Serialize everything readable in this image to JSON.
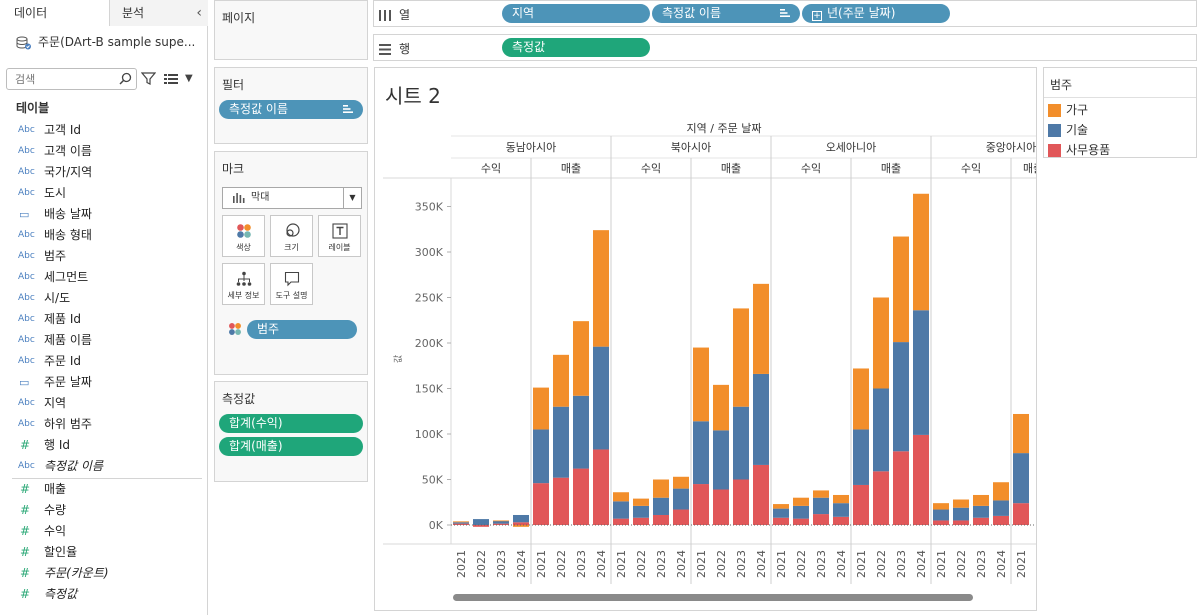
{
  "pane_tabs": {
    "data": "데이터",
    "analysis": "분석"
  },
  "datasource": {
    "name": "주문(DArt-B sample supe..."
  },
  "search": {
    "placeholder": "검색"
  },
  "tables_title": "테이블",
  "fields": [
    {
      "type": "abc",
      "name": "고객 Id",
      "italic": false
    },
    {
      "type": "abc",
      "name": "고객 이름",
      "italic": false
    },
    {
      "type": "abc",
      "name": "국가/지역",
      "italic": false
    },
    {
      "type": "abc",
      "name": "도시",
      "italic": false
    },
    {
      "type": "date",
      "name": "배송 날짜",
      "italic": false
    },
    {
      "type": "abc",
      "name": "배송 형태",
      "italic": false
    },
    {
      "type": "abc",
      "name": "범주",
      "italic": false
    },
    {
      "type": "abc",
      "name": "세그먼트",
      "italic": false
    },
    {
      "type": "abc",
      "name": "시/도",
      "italic": false
    },
    {
      "type": "abc",
      "name": "제품 Id",
      "italic": false
    },
    {
      "type": "abc",
      "name": "제품 이름",
      "italic": false
    },
    {
      "type": "abc",
      "name": "주문 Id",
      "italic": false
    },
    {
      "type": "date",
      "name": "주문 날짜",
      "italic": false
    },
    {
      "type": "abc",
      "name": "지역",
      "italic": false
    },
    {
      "type": "abc",
      "name": "하위 범주",
      "italic": false
    },
    {
      "type": "num",
      "name": "행 Id",
      "italic": false
    },
    {
      "type": "abc",
      "name": "측정값 이름",
      "italic": true
    },
    {
      "type": "num",
      "name": "매출",
      "italic": false
    },
    {
      "type": "num",
      "name": "수량",
      "italic": false
    },
    {
      "type": "num",
      "name": "수익",
      "italic": false
    },
    {
      "type": "num",
      "name": "할인율",
      "italic": false
    },
    {
      "type": "num",
      "name": "주문(카운트)",
      "italic": true
    },
    {
      "type": "num",
      "name": "측정값",
      "italic": true
    }
  ],
  "type_labels": {
    "abc": "Abc",
    "num": "#",
    "date": "▭"
  },
  "cards": {
    "pages": "페이지",
    "filters": "필터",
    "filter_pill": "측정값 이름",
    "marks": "마크",
    "mark_type": "막대",
    "mark_buttons": [
      "색상",
      "크기",
      "레이블",
      "세부 정보",
      "도구 설명"
    ],
    "color_pill": "범주",
    "measures": "측정값",
    "measure_pills": [
      "합계(수익)",
      "합계(매출)"
    ]
  },
  "shelves": {
    "columns_label": "열",
    "rows_label": "행",
    "column_pills": [
      "지역",
      "측정값 이름",
      "년(주문 날짜)"
    ],
    "row_pills": [
      "측정값"
    ]
  },
  "sheet_title": "시트 2",
  "legend": {
    "title": "범주",
    "items": [
      {
        "name": "가구",
        "color": "#f28e2b"
      },
      {
        "name": "기술",
        "color": "#4e79a7"
      },
      {
        "name": "사무용품",
        "color": "#e15759"
      }
    ]
  },
  "chart_data": {
    "type": "bar",
    "stacked": true,
    "header_title": "지역 / 주문 날짜",
    "ylabel": "값",
    "ylim": [
      -3000,
      380000
    ],
    "yticks": [
      0,
      50000,
      100000,
      150000,
      200000,
      250000,
      300000,
      350000
    ],
    "ytick_labels": [
      "0K",
      "50K",
      "100K",
      "150K",
      "200K",
      "250K",
      "300K",
      "350K"
    ],
    "series_order": [
      "사무용품",
      "기술",
      "가구"
    ],
    "colors": {
      "가구": "#f28e2b",
      "기술": "#4e79a7",
      "사무용품": "#e15759"
    },
    "years": [
      "2021",
      "2022",
      "2023",
      "2024"
    ],
    "regions": [
      {
        "name": "동남아시아",
        "measures": [
          {
            "name": "수익",
            "bars": [
              {
                "사무용품": 1500,
                "기술": 1500,
                "가구": 1000
              },
              {
                "사무용품": -2000,
                "기술": 6500,
                "가구": 0
              },
              {
                "사무용품": 1500,
                "기술": 3000,
                "가구": 500
              },
              {
                "사무용품": 3000,
                "기술": 8000,
                "가구": -2000
              }
            ]
          },
          {
            "name": "매출",
            "bars": [
              {
                "사무용품": 46000,
                "기술": 59000,
                "가구": 46000
              },
              {
                "사무용품": 52000,
                "기술": 78000,
                "가구": 57000
              },
              {
                "사무용품": 62000,
                "기술": 80000,
                "가구": 82000
              },
              {
                "사무용품": 83000,
                "기술": 113000,
                "가구": 128000
              }
            ]
          }
        ]
      },
      {
        "name": "북아시아",
        "measures": [
          {
            "name": "수익",
            "bars": [
              {
                "사무용품": 7000,
                "기술": 19000,
                "가구": 10000
              },
              {
                "사무용품": 8000,
                "기술": 13000,
                "가구": 8000
              },
              {
                "사무용품": 11000,
                "기술": 19000,
                "가구": 20000
              },
              {
                "사무용품": 17000,
                "기술": 23000,
                "가구": 13000
              }
            ]
          },
          {
            "name": "매출",
            "bars": [
              {
                "사무용품": 45000,
                "기술": 69000,
                "가구": 81000
              },
              {
                "사무용품": 39000,
                "기술": 65000,
                "가구": 50000
              },
              {
                "사무용품": 50000,
                "기술": 80000,
                "가구": 108000
              },
              {
                "사무용품": 66000,
                "기술": 100000,
                "가구": 99000
              }
            ]
          }
        ]
      },
      {
        "name": "오세아니아",
        "measures": [
          {
            "name": "수익",
            "bars": [
              {
                "사무용품": 8000,
                "기술": 10000,
                "가구": 5000
              },
              {
                "사무용품": 7000,
                "기술": 14000,
                "가구": 9000
              },
              {
                "사무용품": 12000,
                "기술": 18000,
                "가구": 8000
              },
              {
                "사무용품": 9000,
                "기술": 15000,
                "가구": 9000
              }
            ]
          },
          {
            "name": "매출",
            "bars": [
              {
                "사무용품": 44000,
                "기술": 61000,
                "가구": 67000
              },
              {
                "사무용품": 59000,
                "기술": 91000,
                "가구": 100000
              },
              {
                "사무용품": 81000,
                "기술": 120000,
                "가구": 116000
              },
              {
                "사무용품": 99000,
                "기술": 137000,
                "가구": 128000
              }
            ]
          }
        ]
      },
      {
        "name": "중앙아시아",
        "measures": [
          {
            "name": "수익",
            "bars": [
              {
                "사무용품": 5000,
                "기술": 12000,
                "가구": 7000
              },
              {
                "사무용품": 5000,
                "기술": 14000,
                "가구": 9000
              },
              {
                "사무용품": 8000,
                "기술": 13000,
                "가구": 12000
              },
              {
                "사무용품": 10000,
                "기술": 17000,
                "가구": 20000
              }
            ]
          },
          {
            "name": "매출",
            "bars": [
              {
                "사무용품": 24000,
                "기술": 55000,
                "가구": 43000
              }
            ]
          }
        ]
      }
    ]
  }
}
